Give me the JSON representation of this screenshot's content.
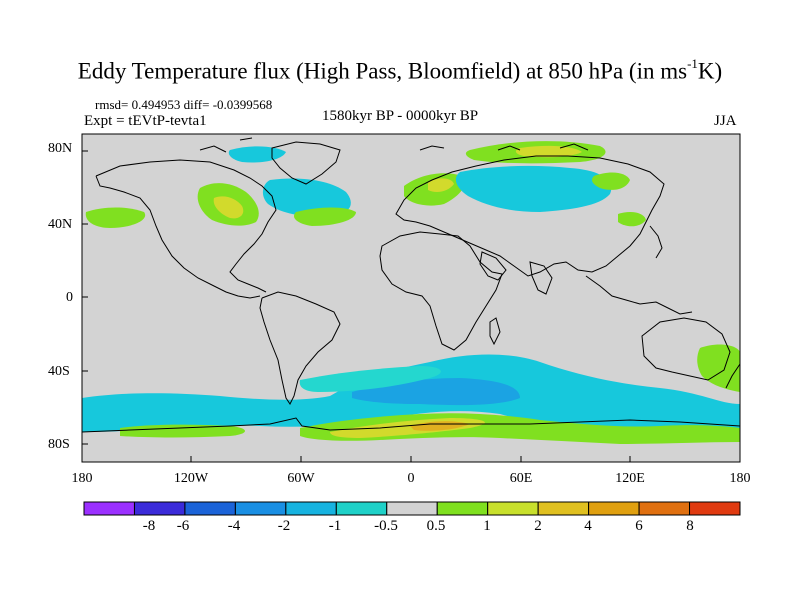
{
  "title": {
    "main": "Eddy Temperature flux (High Pass, Bloomfield) at 850 hPa (in ms",
    "unit_sup": "-1",
    "unit_end": "K)"
  },
  "stats": "rmsd= 0.494953 diff= -0.0399568",
  "experiment": "Expt = tEVtP-tevta1",
  "period": "1580kyr BP - 0000kyr BP",
  "season": "JJA",
  "map": {
    "projection": "cylindrical equidistant",
    "background_color": "#d3d3d3",
    "lat_ticks": [
      "80N",
      "40N",
      "0",
      "40S",
      "80S"
    ],
    "lon_ticks": [
      "180",
      "120W",
      "60W",
      "0",
      "60E",
      "120E",
      "180"
    ]
  },
  "colorbar": {
    "labels": [
      "-8",
      "-6",
      "-4",
      "-2",
      "-1",
      "-0.5",
      "0.5",
      "1",
      "2",
      "4",
      "6",
      "8"
    ],
    "colors": [
      "#9b30ff",
      "#3b2bd9",
      "#1b63d8",
      "#1a8fe3",
      "#17b3e0",
      "#1fd1c8",
      "#d3d3d3",
      "#7fe01f",
      "#c8e02c",
      "#e0c020",
      "#e0a010",
      "#e07010",
      "#e03a10"
    ]
  },
  "fields": {
    "colors": {
      "cyan": "#17c8dc",
      "light_cyan": "#24d7cf",
      "blue": "#1ba3e3",
      "green": "#80e020",
      "yellow": "#d2da2c",
      "orange": "#e0b020"
    }
  }
}
